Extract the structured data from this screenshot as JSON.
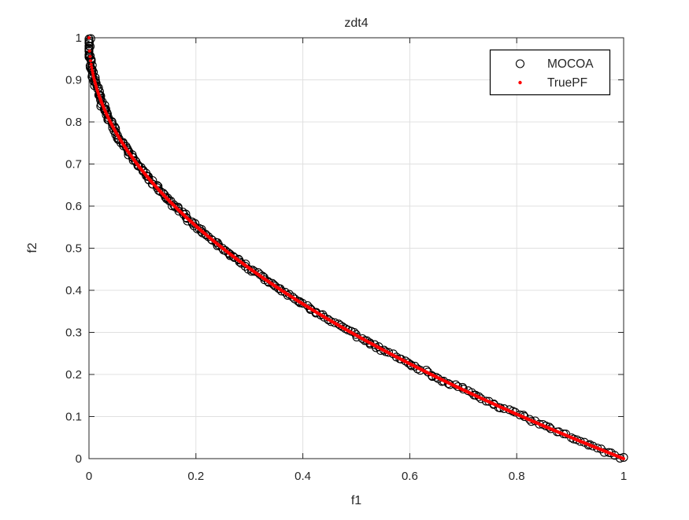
{
  "window": {
    "background": "#ffffff"
  },
  "chart_data": {
    "type": "scatter",
    "title": "zdt4",
    "xlabel": "f1",
    "ylabel": "f2",
    "xlim": [
      0,
      1
    ],
    "ylim": [
      0,
      1
    ],
    "x_ticks": [
      0,
      0.2,
      0.4,
      0.6,
      0.8,
      1
    ],
    "x_tick_labels": [
      "0",
      "0.2",
      "0.4",
      "0.6",
      "0.8",
      "1"
    ],
    "y_ticks": [
      0,
      0.1,
      0.2,
      0.3,
      0.4,
      0.5,
      0.6,
      0.7,
      0.8,
      0.9,
      1
    ],
    "y_tick_labels": [
      "0",
      "0.1",
      "0.2",
      "0.3",
      "0.4",
      "0.5",
      "0.6",
      "0.7",
      "0.8",
      "0.9",
      "1"
    ],
    "grid": true,
    "colors": {
      "grid": "#e0e0e0",
      "axis": "#262626",
      "mocoa": "#000000",
      "truepf": "#ff0000",
      "background": "#ffffff"
    },
    "legend": {
      "position": "top-right",
      "entries": [
        {
          "label": "MOCOA",
          "marker": "open-circle",
          "color": "#000000"
        },
        {
          "label": "TruePF",
          "marker": "dot",
          "color": "#ff0000"
        }
      ]
    },
    "series": [
      {
        "name": "MOCOA",
        "marker": "open-circle",
        "marker_size": 5,
        "color": "#000000",
        "relation": "f2 = 1 - sqrt(f1)",
        "sampling": {
          "mode": "uniform-arc",
          "n": 290,
          "jitter": 0.0035,
          "seed": 7
        },
        "points_sample": [
          [
            0,
            1
          ],
          [
            0.01,
            0.9
          ],
          [
            0.04,
            0.8
          ],
          [
            0.09,
            0.7
          ],
          [
            0.16,
            0.6
          ],
          [
            0.25,
            0.5
          ],
          [
            0.36,
            0.4
          ],
          [
            0.49,
            0.3
          ],
          [
            0.64,
            0.2
          ],
          [
            0.81,
            0.1
          ],
          [
            1,
            0
          ]
        ]
      },
      {
        "name": "TruePF",
        "marker": "dot",
        "marker_size": 2,
        "color": "#ff0000",
        "relation": "f2 = 1 - sqrt(f1)",
        "sampling": {
          "mode": "uniform-x",
          "n": 1000
        },
        "points_sample": [
          [
            0,
            1
          ],
          [
            0.01,
            0.9
          ],
          [
            0.04,
            0.8
          ],
          [
            0.09,
            0.7
          ],
          [
            0.16,
            0.6
          ],
          [
            0.25,
            0.5
          ],
          [
            0.36,
            0.4
          ],
          [
            0.49,
            0.3
          ],
          [
            0.64,
            0.2
          ],
          [
            0.81,
            0.1
          ],
          [
            1,
            0
          ]
        ]
      }
    ]
  }
}
